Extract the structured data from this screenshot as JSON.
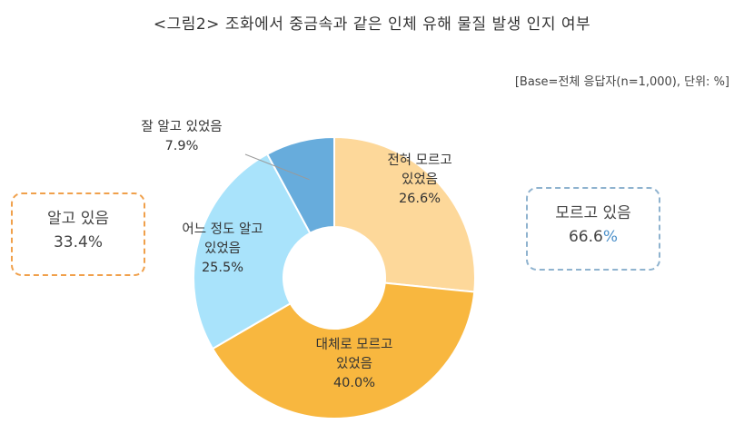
{
  "title": "<그림2> 조화에서 중금속과 같은 인체 유해 물질 발생 인지 여부",
  "base_note": "[Base=전체 응답자(n=1,000), 단위: %]",
  "groups": {
    "known": {
      "label": "알고 있음",
      "value_text": "33.4%"
    },
    "unknown": {
      "label": "모르고 있음",
      "value_text": "66.6",
      "value_suffix": "%"
    }
  },
  "chart_data": {
    "type": "pie",
    "donut": true,
    "title": "<그림2> 조화에서 중금속과 같은 인체 유해 물질 발생 인지 여부",
    "unit": "%",
    "slices": [
      {
        "label_lines": [
          "전혀 모르고",
          "있었음"
        ],
        "value": 26.6,
        "value_text": "26.6%",
        "color": "#fdd89a"
      },
      {
        "label_lines": [
          "대체로 모르고",
          "있었음"
        ],
        "value": 40.0,
        "value_text": "40.0%",
        "color": "#f8b73f"
      },
      {
        "label_lines": [
          "어느 정도 알고",
          "있었음"
        ],
        "value": 25.5,
        "value_text": "25.5%",
        "color": "#a9e3fb"
      },
      {
        "label_lines": [
          "잘 알고 있었음"
        ],
        "value": 7.9,
        "value_text": "7.9%",
        "color": "#67acdc"
      }
    ]
  }
}
